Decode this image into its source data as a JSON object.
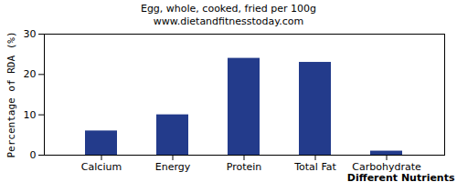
{
  "chart_data": {
    "type": "bar",
    "title": "Egg, whole, cooked, fried per 100g",
    "subtitle": "www.dietandfitnesstoday.com",
    "x_label": "Different Nutrients",
    "y_label": "Percentage of RDA (%)",
    "categories": [
      "Calcium",
      "Energy",
      "Protein",
      "Total Fat",
      "Carbohydrate"
    ],
    "values": [
      6,
      10,
      24,
      23,
      1
    ],
    "color": "#233b8b",
    "ylim": [
      0,
      30
    ],
    "yticks": [
      0,
      10,
      20,
      30
    ],
    "grid": false
  }
}
